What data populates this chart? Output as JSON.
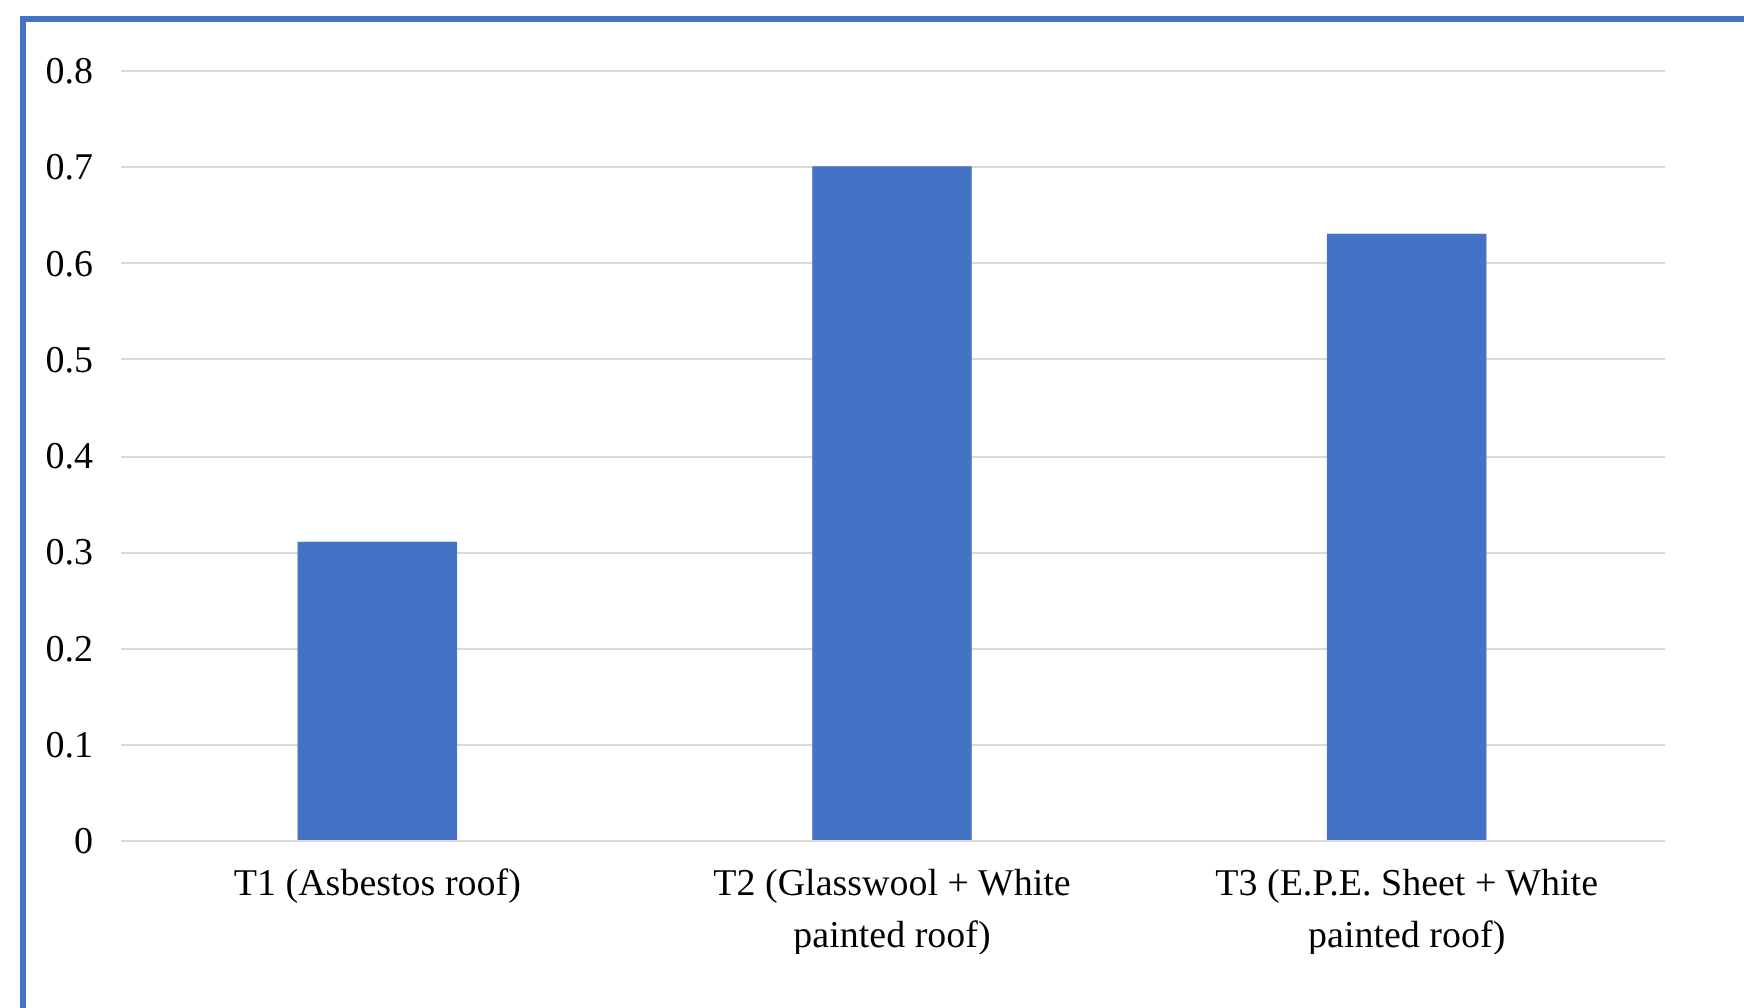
{
  "chart_data": {
    "type": "bar",
    "categories": [
      "T1 (Asbestos roof)",
      "T2 (Glasswool + White painted roof)",
      "T3 (E.P.E. Sheet + White painted roof)"
    ],
    "values": [
      0.31,
      0.7,
      0.63
    ],
    "color": "#4472c4",
    "ylim": [
      0,
      0.8
    ],
    "yticks": [
      0,
      0.1,
      0.2,
      0.3,
      0.4,
      0.5,
      0.6,
      0.7,
      0.8
    ],
    "grid": "y"
  }
}
